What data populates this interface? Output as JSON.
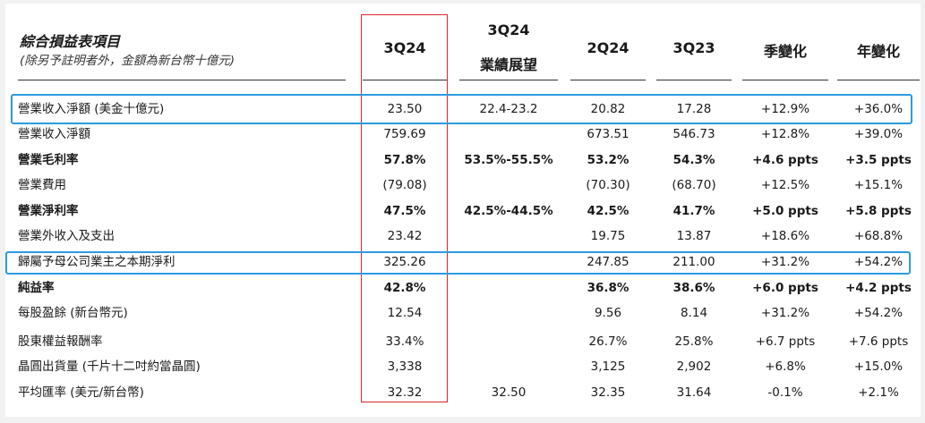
{
  "header": {
    "title": "綜合損益表項目",
    "subtitle": "(除另予註明者外，金額為新台幣十億元)",
    "columns": {
      "c1": "3Q24",
      "c2_line1": "3Q24",
      "c2_line2": "業績展望",
      "c3": "2Q24",
      "c4": "3Q23",
      "c5": "季變化",
      "c6": "年變化"
    }
  },
  "rows": [
    {
      "label": "營業收入淨額 (美金十億元)",
      "c1": "23.50",
      "c2": "22.4-23.2",
      "c3": "20.82",
      "c4": "17.28",
      "c5": "+12.9%",
      "c6": "+36.0%"
    },
    {
      "label": "營業收入淨額",
      "c1": "759.69",
      "c2": "",
      "c3": "673.51",
      "c4": "546.73",
      "c5": "+12.8%",
      "c6": "+39.0%"
    },
    {
      "label": "營業毛利率",
      "c1": "57.8%",
      "c2": "53.5%-55.5%",
      "c3": "53.2%",
      "c4": "54.3%",
      "c5": "+4.6 ppts",
      "c6": "+3.5 ppts"
    },
    {
      "label": "營業費用",
      "c1": "(79.08)",
      "c2": "",
      "c3": "(70.30)",
      "c4": "(68.70)",
      "c5": "+12.5%",
      "c6": "+15.1%"
    },
    {
      "label": "營業淨利率",
      "c1": "47.5%",
      "c2": "42.5%-44.5%",
      "c3": "42.5%",
      "c4": "41.7%",
      "c5": "+5.0 ppts",
      "c6": "+5.8 ppts"
    },
    {
      "label": "營業外收入及支出",
      "c1": "23.42",
      "c2": "",
      "c3": "19.75",
      "c4": "13.87",
      "c5": "+18.6%",
      "c6": "+68.8%"
    },
    {
      "label": "歸屬予母公司業主之本期淨利",
      "c1": "325.26",
      "c2": "",
      "c3": "247.85",
      "c4": "211.00",
      "c5": "+31.2%",
      "c6": "+54.2%"
    },
    {
      "label": "純益率",
      "c1": "42.8%",
      "c2": "",
      "c3": "36.8%",
      "c4": "38.6%",
      "c5": "+6.0 ppts",
      "c6": "+4.2 ppts"
    },
    {
      "label": "每股盈餘 (新台幣元)",
      "c1": "12.54",
      "c2": "",
      "c3": "9.56",
      "c4": "8.14",
      "c5": "+31.2%",
      "c6": "+54.2%"
    },
    {
      "label": "股東權益報酬率",
      "c1": "33.4%",
      "c2": "",
      "c3": "26.7%",
      "c4": "25.8%",
      "c5": "+6.7 ppts",
      "c6": "+7.6 ppts"
    },
    {
      "label": "晶圓出貨量 (千片十二吋約當晶圓)",
      "c1": "3,338",
      "c2": "",
      "c3": "3,125",
      "c4": "2,902",
      "c5": "+6.8%",
      "c6": "+15.0%"
    },
    {
      "label": "平均匯率 (美元/新台幣)",
      "c1": "32.32",
      "c2": "32.50",
      "c3": "32.35",
      "c4": "31.64",
      "c5": "-0.1%",
      "c6": "+2.1%"
    }
  ]
}
